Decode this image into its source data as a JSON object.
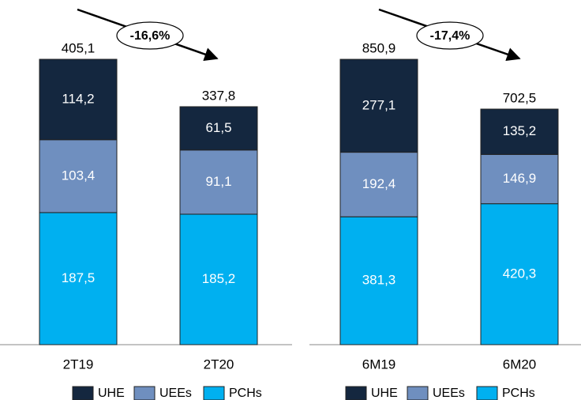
{
  "chart_data": [
    {
      "type": "bar",
      "stacked": true,
      "categories": [
        "2T19",
        "2T20"
      ],
      "series": [
        {
          "name": "UHE",
          "color": "#14273f",
          "values": [
            114.2,
            61.5
          ],
          "value_labels": [
            "114,2",
            "61,5"
          ]
        },
        {
          "name": "UEEs",
          "color": "#6f8fbf",
          "values": [
            103.4,
            91.1
          ],
          "value_labels": [
            "103,4",
            "91,1"
          ]
        },
        {
          "name": "PCHs",
          "color": "#00b0f0",
          "values": [
            187.5,
            185.2
          ],
          "value_labels": [
            "187,5",
            "185,2"
          ]
        }
      ],
      "totals": [
        405.1,
        337.8
      ],
      "total_labels": [
        "405,1",
        "337,8"
      ],
      "annotation": "-16,6%"
    },
    {
      "type": "bar",
      "stacked": true,
      "categories": [
        "6M19",
        "6M20"
      ],
      "series": [
        {
          "name": "UHE",
          "color": "#14273f",
          "values": [
            277.1,
            135.2
          ],
          "value_labels": [
            "277,1",
            "135,2"
          ]
        },
        {
          "name": "UEEs",
          "color": "#6f8fbf",
          "values": [
            192.4,
            146.9
          ],
          "value_labels": [
            "192,4",
            "146,9"
          ]
        },
        {
          "name": "PCHs",
          "color": "#00b0f0",
          "values": [
            381.3,
            420.3
          ],
          "value_labels": [
            "381,3",
            "420,3"
          ]
        }
      ],
      "totals": [
        850.9,
        702.5
      ],
      "total_labels": [
        "850,9",
        "702,5"
      ],
      "annotation": "-17,4%"
    }
  ]
}
